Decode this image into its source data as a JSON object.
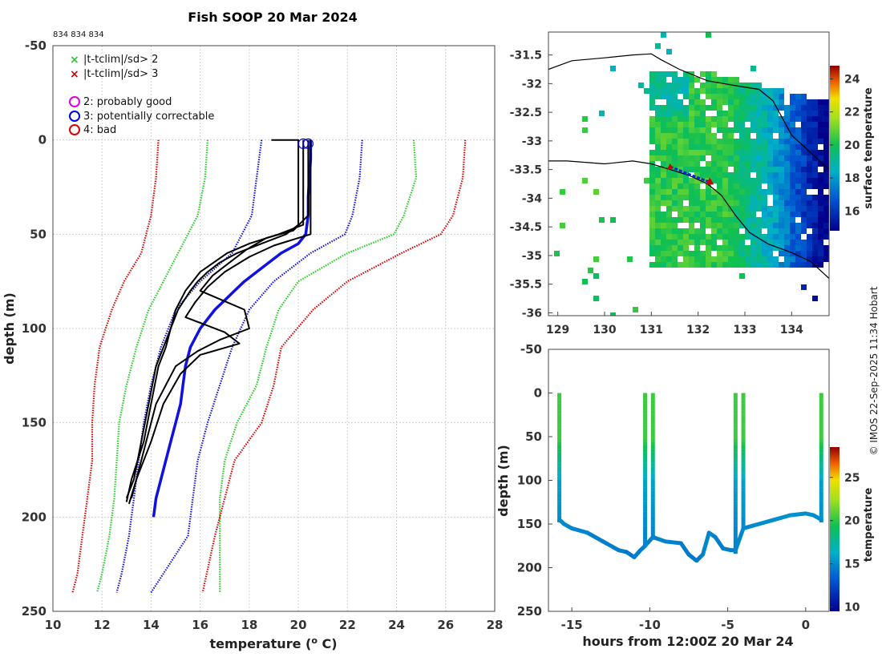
{
  "chart_data": [
    {
      "type": "line",
      "title": "Fish SOOP 20 Mar 2024",
      "subtitle": "834 834 834",
      "xlabel_main": "temperature (",
      "xlabel_sup": "o",
      "xlabel_end": " C)",
      "ylabel": "depth (m)",
      "xlim": [
        10,
        28
      ],
      "ylim": [
        -50,
        250
      ],
      "xticks": [
        10,
        12,
        14,
        16,
        18,
        20,
        22,
        24,
        26,
        28
      ],
      "yticks": [
        -50,
        0,
        50,
        100,
        150,
        200,
        250
      ],
      "legend": [
        {
          "marker": "x",
          "color": "#22cc22",
          "label": "|t-tclim|/sd> 2"
        },
        {
          "marker": "x",
          "color": "#dd0000",
          "label": "|t-tclim|/sd> 3"
        },
        {
          "marker": "o",
          "color": "#dd00dd",
          "label": "2: probably good"
        },
        {
          "marker": "o",
          "color": "#0000dd",
          "label": "3: potentially correctable"
        },
        {
          "marker": "o",
          "color": "#dd0000",
          "label": "4: bad"
        }
      ],
      "climatology_mean": {
        "color": "#1010e0",
        "depth": [
          0,
          10,
          20,
          30,
          40,
          50,
          55,
          60,
          65,
          70,
          75,
          80,
          85,
          90,
          100,
          110,
          120,
          130,
          140,
          150,
          160,
          170,
          180,
          190,
          200
        ],
        "temp": [
          20.5,
          20.5,
          20.45,
          20.4,
          20.4,
          20.3,
          20.0,
          19.3,
          18.8,
          18.3,
          17.8,
          17.4,
          17.0,
          16.6,
          16.0,
          15.6,
          15.4,
          15.3,
          15.2,
          15.0,
          14.8,
          14.6,
          14.4,
          14.2,
          14.1
        ]
      },
      "envelopes": [
        {
          "name": "-3sd",
          "color": "#dd0000",
          "depth": [
            0,
            20,
            40,
            60,
            75,
            90,
            110,
            130,
            150,
            170,
            190,
            210,
            230,
            240
          ],
          "temp": [
            14.3,
            14.2,
            14.0,
            13.6,
            12.9,
            12.4,
            11.9,
            11.7,
            11.6,
            11.6,
            11.4,
            11.2,
            11.0,
            10.8
          ]
        },
        {
          "name": "-2sd",
          "color": "#22cc22",
          "depth": [
            0,
            20,
            40,
            60,
            75,
            90,
            110,
            130,
            150,
            170,
            190,
            210,
            230,
            240
          ],
          "temp": [
            16.3,
            16.2,
            15.9,
            15.1,
            14.5,
            13.9,
            13.4,
            13.0,
            12.7,
            12.6,
            12.5,
            12.3,
            12.0,
            11.8
          ]
        },
        {
          "name": "-1sd",
          "color": "#1010e0",
          "depth": [
            0,
            20,
            40,
            60,
            75,
            90,
            110,
            130,
            150,
            170,
            190,
            210,
            230,
            240
          ],
          "temp": [
            18.5,
            18.3,
            18.1,
            17.3,
            16.0,
            15.0,
            14.4,
            14.0,
            13.7,
            13.5,
            13.3,
            13.1,
            12.8,
            12.6
          ]
        },
        {
          "name": "+1sd",
          "color": "#1010e0",
          "depth": [
            0,
            20,
            40,
            50,
            60,
            75,
            90,
            110,
            130,
            150,
            170,
            190,
            210,
            240
          ],
          "temp": [
            22.6,
            22.5,
            22.2,
            21.9,
            20.5,
            19.0,
            18.0,
            17.3,
            16.8,
            16.3,
            15.9,
            15.7,
            15.5,
            14.0
          ]
        },
        {
          "name": "+2sd",
          "color": "#22cc22",
          "depth": [
            0,
            20,
            40,
            50,
            60,
            75,
            90,
            110,
            130,
            150,
            170,
            190,
            210,
            240
          ],
          "temp": [
            24.7,
            24.8,
            24.3,
            23.9,
            22.0,
            20.0,
            19.2,
            18.7,
            18.3,
            17.5,
            17.0,
            16.8,
            16.8,
            16.8
          ]
        },
        {
          "name": "+3sd",
          "color": "#dd0000",
          "depth": [
            0,
            20,
            40,
            50,
            60,
            75,
            90,
            110,
            130,
            150,
            170,
            190,
            210,
            240
          ],
          "temp": [
            26.8,
            26.7,
            26.3,
            25.8,
            24.2,
            22.0,
            20.6,
            19.3,
            19.0,
            18.5,
            17.4,
            17.0,
            16.6,
            16.1
          ]
        }
      ],
      "profiles": [
        {
          "color": "#000000",
          "depth": [
            0,
            0,
            45,
            50,
            55,
            60,
            65,
            70,
            75,
            80,
            90,
            100,
            110,
            120,
            140,
            160,
            180,
            190
          ],
          "temp": [
            18.9,
            20.0,
            20.0,
            19.5,
            18.5,
            17.5,
            16.8,
            16.3,
            15.9,
            15.6,
            15.1,
            14.8,
            14.5,
            14.2,
            13.9,
            13.6,
            13.3,
            13.0
          ]
        },
        {
          "color": "#000000",
          "depth": [
            0,
            45,
            50,
            55,
            60,
            70,
            80,
            90,
            100,
            110,
            120,
            140,
            160,
            180,
            192
          ],
          "temp": [
            20.2,
            20.2,
            19.2,
            18.0,
            17.1,
            16.0,
            15.4,
            15.0,
            14.8,
            14.6,
            14.3,
            14.0,
            13.7,
            13.2,
            13.0
          ]
        },
        {
          "color": "#000000",
          "depth": [
            0,
            40,
            48,
            52,
            58,
            65,
            72,
            80,
            90,
            100,
            106,
            112,
            120,
            140,
            160,
            180,
            193
          ],
          "temp": [
            20.4,
            20.4,
            19.8,
            18.7,
            17.9,
            17.2,
            16.5,
            16.0,
            17.8,
            18.0,
            16.8,
            15.9,
            15.0,
            14.2,
            13.8,
            13.4,
            13.1
          ]
        },
        {
          "color": "#000000",
          "depth": [
            0,
            45,
            50,
            56,
            62,
            70,
            78,
            86,
            94,
            102,
            108,
            114,
            124,
            140,
            160,
            180,
            190
          ],
          "temp": [
            20.5,
            20.5,
            20.5,
            19.0,
            18.0,
            17.0,
            16.3,
            15.8,
            15.4,
            17.0,
            17.6,
            16.0,
            15.2,
            14.5,
            14.0,
            13.4,
            13.2
          ]
        }
      ],
      "flag_circles": [
        {
          "temp": 20.2,
          "depth": 2
        },
        {
          "temp": 20.4,
          "depth": 2
        }
      ]
    },
    {
      "type": "heatmap",
      "xlim": [
        128.8,
        134.8
      ],
      "ylim": [
        -36.05,
        -31.1
      ],
      "xticks": [
        129,
        130,
        131,
        132,
        133,
        134
      ],
      "yticks": [
        -31.5,
        -32,
        -32.5,
        -33,
        -33.5,
        -34,
        -34.5,
        -35,
        -35.5,
        -36
      ],
      "colorbar_label": "surface temperature",
      "colorbar_range": [
        14.8,
        24.8
      ],
      "colorbar_ticks": [
        16,
        18,
        20,
        22,
        24
      ],
      "track": [
        {
          "lon": 131.4,
          "lat": -33.45
        },
        {
          "lon": 131.8,
          "lat": -33.58
        },
        {
          "lon": 132.25,
          "lat": -33.72
        }
      ]
    },
    {
      "type": "scatter",
      "xlabel": "hours from 12:00Z 20 Mar 24",
      "ylabel": "depth (m)",
      "xlim": [
        -16.5,
        1.5
      ],
      "ylim": [
        -50,
        250
      ],
      "xticks": [
        -15,
        -10,
        -5,
        0
      ],
      "yticks": [
        -50,
        0,
        50,
        100,
        150,
        200,
        250
      ],
      "colorbar_label": "temperature",
      "colorbar_range": [
        9.5,
        28.5
      ],
      "colorbar_ticks": [
        10,
        15,
        20,
        25
      ],
      "dives": [
        {
          "hour": -15.8,
          "temp_top": 20.5
        },
        {
          "hour": -10.3,
          "temp_top": 20.3
        },
        {
          "hour": -9.8,
          "temp_top": 20.3
        },
        {
          "hour": -4.5,
          "temp_top": 20.5
        },
        {
          "hour": -4.0,
          "temp_top": 20.5
        },
        {
          "hour": 1.0,
          "temp_top": 20.5
        }
      ],
      "bottom_path": {
        "hours": [
          -15.8,
          -15.5,
          -15.0,
          -14.0,
          -13.0,
          -12.0,
          -11.5,
          -11.0,
          -10.6,
          -10.3,
          -9.8,
          -9.0,
          -8.0,
          -7.5,
          -7.0,
          -6.6,
          -6.2,
          -5.8,
          -5.3,
          -4.8,
          -4.5,
          -4.0,
          -3.0,
          -2.0,
          -1.0,
          0.0,
          0.5,
          1.0
        ],
        "depth": [
          145,
          150,
          155,
          160,
          170,
          180,
          182,
          188,
          180,
          175,
          165,
          170,
          172,
          185,
          192,
          185,
          160,
          165,
          178,
          180,
          180,
          155,
          150,
          145,
          140,
          138,
          140,
          145
        ]
      }
    }
  ],
  "credit": "© IMOS 22-Sep-2025 11:34 Hobart"
}
